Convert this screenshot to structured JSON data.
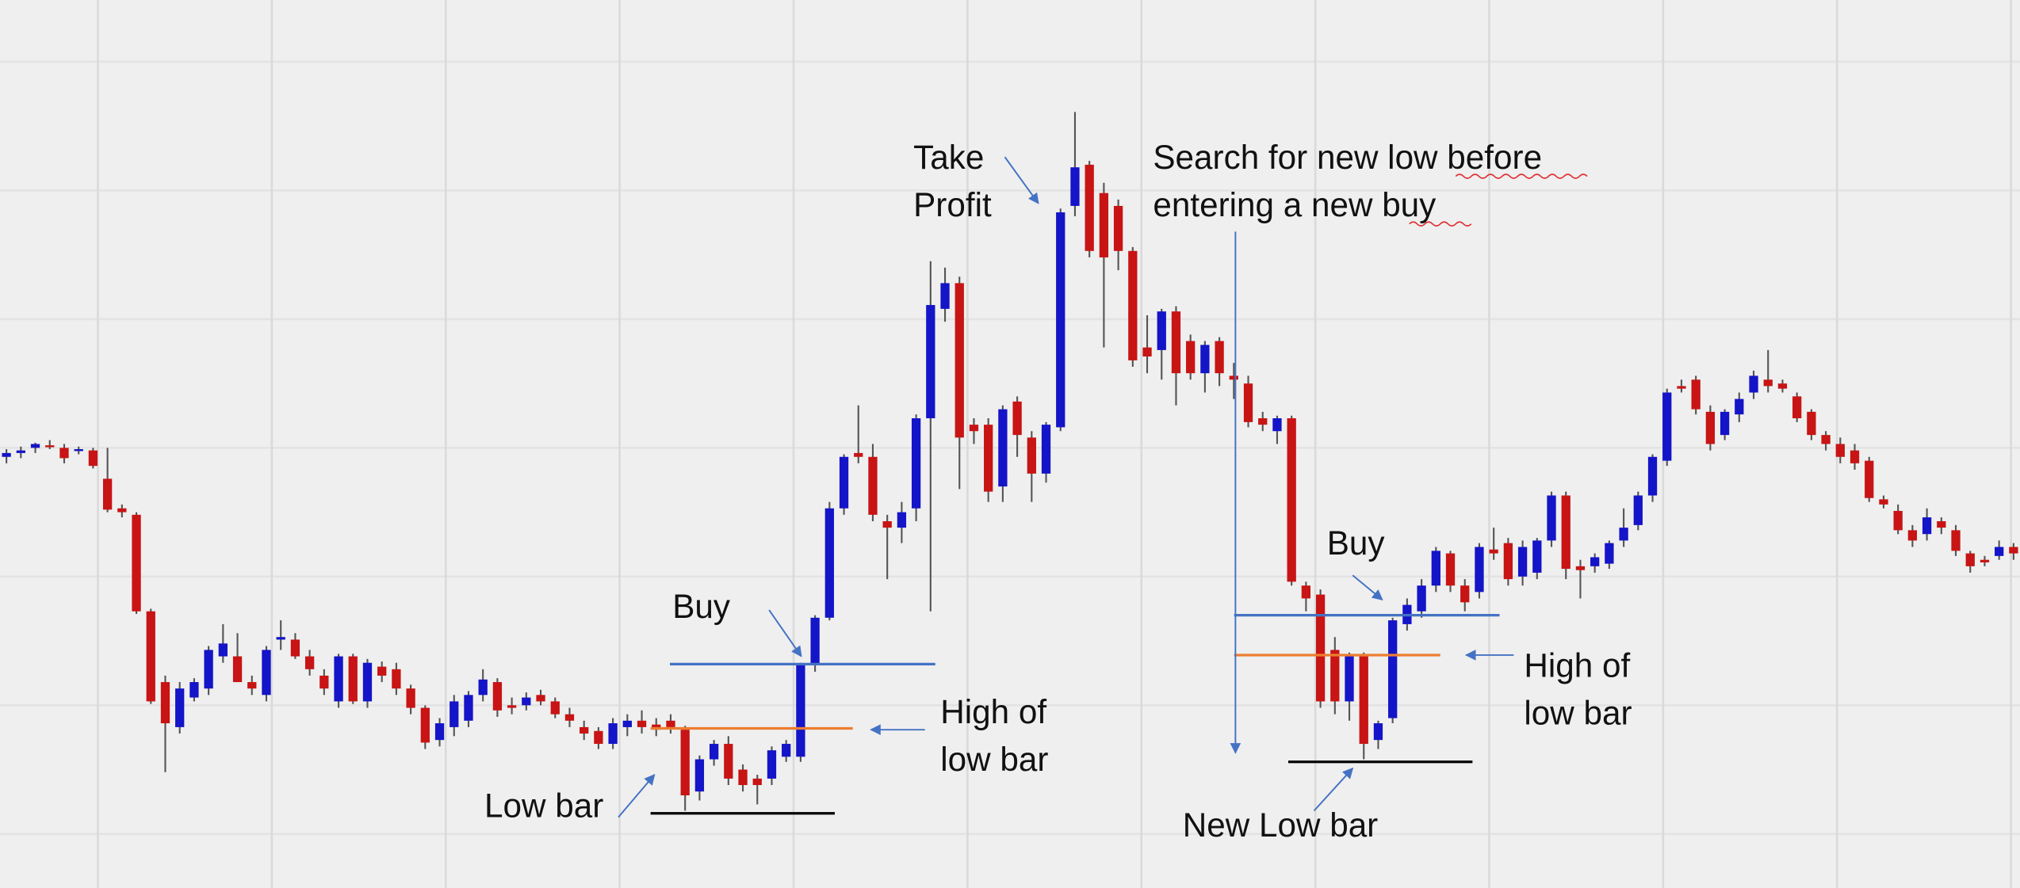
{
  "chart_data": {
    "type": "candlestick",
    "up_color": "#1414c8",
    "down_color": "#c81414",
    "wick_color": "#555555",
    "ylim": [
      0,
      690
    ],
    "ohlc": [
      [
        335,
        341,
        330,
        338
      ],
      [
        338,
        343,
        334,
        340
      ],
      [
        342,
        346,
        338,
        345
      ],
      [
        344,
        348,
        341,
        343
      ],
      [
        342,
        345,
        330,
        334
      ],
      [
        340,
        343,
        337,
        341
      ],
      [
        340,
        342,
        326,
        328
      ],
      [
        318,
        342,
        292,
        294
      ],
      [
        295,
        298,
        288,
        292
      ],
      [
        290,
        292,
        213,
        215
      ],
      [
        215,
        217,
        143,
        145
      ],
      [
        160,
        165,
        90,
        128
      ],
      [
        125,
        160,
        120,
        155
      ],
      [
        148,
        163,
        145,
        160
      ],
      [
        155,
        188,
        150,
        185
      ],
      [
        180,
        205,
        175,
        190
      ],
      [
        180,
        198,
        160,
        160
      ],
      [
        160,
        165,
        150,
        155
      ],
      [
        150,
        188,
        145,
        185
      ],
      [
        193,
        208,
        185,
        195
      ],
      [
        193,
        198,
        178,
        180
      ],
      [
        180,
        185,
        165,
        170
      ],
      [
        165,
        170,
        150,
        155
      ],
      [
        145,
        182,
        140,
        180
      ],
      [
        180,
        182,
        143,
        145
      ],
      [
        145,
        178,
        140,
        175
      ],
      [
        172,
        176,
        160,
        165
      ],
      [
        170,
        175,
        150,
        155
      ],
      [
        155,
        158,
        135,
        140
      ],
      [
        140,
        142,
        108,
        113
      ],
      [
        115,
        132,
        110,
        128
      ],
      [
        125,
        150,
        118,
        145
      ],
      [
        130,
        153,
        125,
        150
      ],
      [
        150,
        170,
        145,
        162
      ],
      [
        160,
        163,
        133,
        138
      ],
      [
        142,
        148,
        135,
        140
      ],
      [
        142,
        152,
        138,
        148
      ],
      [
        150,
        154,
        142,
        145
      ],
      [
        145,
        148,
        132,
        135
      ],
      [
        135,
        140,
        125,
        130
      ],
      [
        125,
        130,
        115,
        120
      ],
      [
        122,
        125,
        108,
        112
      ],
      [
        112,
        132,
        108,
        128
      ],
      [
        125,
        135,
        118,
        130
      ],
      [
        130,
        138,
        120,
        125
      ],
      [
        127,
        132,
        118,
        123
      ],
      [
        130,
        135,
        120,
        125
      ],
      [
        123,
        126,
        60,
        72
      ],
      [
        75,
        103,
        68,
        100
      ],
      [
        100,
        115,
        95,
        112
      ],
      [
        112,
        118,
        80,
        85
      ],
      [
        92,
        96,
        75,
        80
      ],
      [
        85,
        88,
        65,
        80
      ],
      [
        85,
        110,
        80,
        107
      ],
      [
        102,
        115,
        98,
        112
      ],
      [
        102,
        175,
        98,
        173
      ],
      [
        173,
        212,
        168,
        210
      ],
      [
        210,
        300,
        208,
        295
      ],
      [
        295,
        337,
        290,
        335
      ],
      [
        338,
        375,
        330,
        335
      ],
      [
        335,
        345,
        285,
        290
      ],
      [
        285,
        290,
        240,
        280
      ],
      [
        280,
        300,
        268,
        292
      ],
      [
        295,
        368,
        285,
        365
      ],
      [
        365,
        487,
        215,
        453
      ],
      [
        450,
        482,
        440,
        470
      ],
      [
        470,
        475,
        310,
        350
      ],
      [
        360,
        365,
        345,
        355
      ],
      [
        360,
        365,
        300,
        308
      ],
      [
        312,
        375,
        300,
        372
      ],
      [
        378,
        382,
        335,
        352
      ],
      [
        350,
        355,
        300,
        322
      ],
      [
        322,
        362,
        315,
        360
      ],
      [
        358,
        528,
        355,
        525
      ],
      [
        530,
        603,
        522,
        560
      ],
      [
        562,
        565,
        490,
        495
      ],
      [
        540,
        548,
        420,
        490
      ],
      [
        530,
        535,
        480,
        495
      ],
      [
        495,
        498,
        405,
        410
      ],
      [
        420,
        445,
        400,
        413
      ],
      [
        418,
        450,
        395,
        448
      ],
      [
        448,
        452,
        375,
        400
      ],
      [
        425,
        430,
        395,
        400
      ],
      [
        400,
        425,
        385,
        422
      ],
      [
        425,
        428,
        390,
        400
      ],
      [
        398,
        408,
        380,
        395
      ],
      [
        392,
        398,
        358,
        362
      ],
      [
        365,
        370,
        355,
        360
      ],
      [
        355,
        367,
        345,
        365
      ],
      [
        365,
        367,
        235,
        238
      ],
      [
        235,
        238,
        215,
        225
      ],
      [
        228,
        232,
        140,
        145
      ],
      [
        185,
        195,
        135,
        145
      ],
      [
        145,
        183,
        130,
        180
      ],
      [
        180,
        183,
        100,
        112
      ],
      [
        115,
        130,
        108,
        128
      ],
      [
        132,
        210,
        128,
        208
      ],
      [
        205,
        225,
        200,
        220
      ],
      [
        215,
        240,
        210,
        235
      ],
      [
        235,
        265,
        230,
        262
      ],
      [
        260,
        262,
        230,
        235
      ],
      [
        235,
        240,
        215,
        222
      ],
      [
        230,
        268,
        225,
        265
      ],
      [
        263,
        280,
        255,
        260
      ],
      [
        268,
        272,
        235,
        240
      ],
      [
        242,
        270,
        235,
        265
      ],
      [
        245,
        272,
        240,
        270
      ],
      [
        270,
        308,
        265,
        305
      ],
      [
        305,
        308,
        240,
        248
      ],
      [
        250,
        255,
        225,
        247
      ],
      [
        250,
        260,
        245,
        257
      ],
      [
        252,
        270,
        248,
        268
      ],
      [
        270,
        295,
        265,
        280
      ],
      [
        282,
        308,
        278,
        305
      ],
      [
        305,
        337,
        300,
        335
      ],
      [
        332,
        388,
        328,
        385
      ],
      [
        390,
        395,
        385,
        388
      ],
      [
        395,
        398,
        368,
        372
      ],
      [
        370,
        375,
        340,
        345
      ],
      [
        352,
        372,
        348,
        370
      ],
      [
        368,
        385,
        362,
        380
      ],
      [
        385,
        402,
        380,
        398
      ],
      [
        395,
        418,
        385,
        390
      ],
      [
        392,
        395,
        385,
        388
      ],
      [
        382,
        385,
        362,
        365
      ],
      [
        370,
        372,
        348,
        352
      ],
      [
        352,
        355,
        340,
        345
      ],
      [
        345,
        350,
        330,
        335
      ],
      [
        340,
        345,
        325,
        330
      ],
      [
        332,
        335,
        300,
        303
      ],
      [
        302,
        305,
        295,
        298
      ],
      [
        293,
        298,
        275,
        278
      ],
      [
        278,
        282,
        265,
        270
      ],
      [
        275,
        295,
        270,
        288
      ],
      [
        285,
        288,
        275,
        280
      ],
      [
        278,
        282,
        258,
        262
      ],
      [
        260,
        262,
        245,
        250
      ],
      [
        255,
        258,
        250,
        253
      ],
      [
        258,
        270,
        255,
        265
      ],
      [
        265,
        268,
        255,
        260
      ]
    ],
    "annotations": [
      {
        "lines": [
          "Take",
          "Profit"
        ]
      },
      {
        "lines": [
          "Search for new low before",
          "entering a new buy"
        ]
      },
      {
        "lines": [
          "Buy"
        ]
      },
      {
        "lines": [
          "High of",
          "low bar"
        ]
      },
      {
        "lines": [
          "Low bar"
        ]
      },
      {
        "lines": [
          "Buy"
        ]
      },
      {
        "lines": [
          "High of",
          "low bar"
        ]
      },
      {
        "lines": [
          "New Low bar"
        ]
      }
    ]
  }
}
